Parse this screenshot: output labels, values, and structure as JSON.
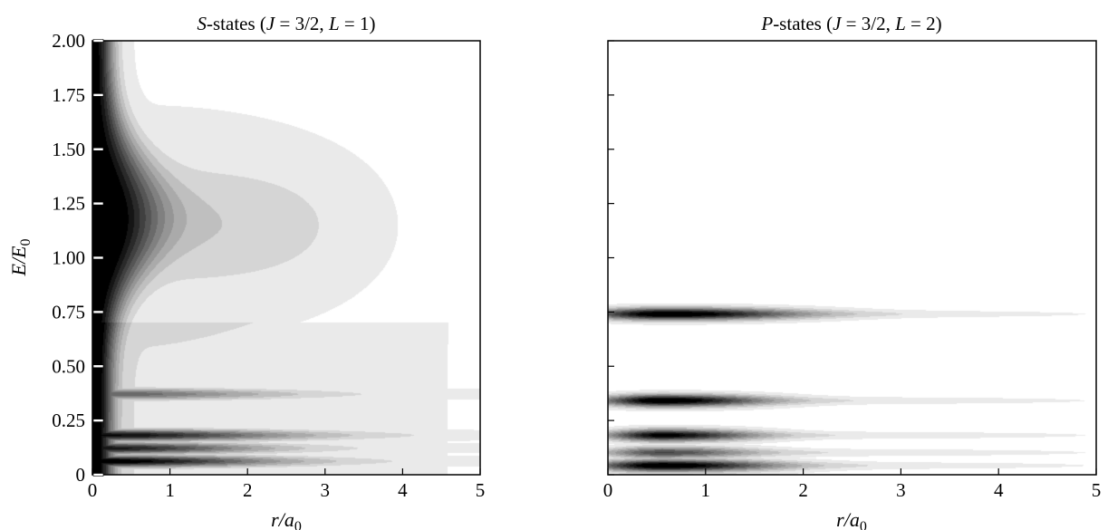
{
  "chart_data": [
    {
      "type": "heatmap",
      "title_parts": [
        {
          "t": "S",
          "i": true
        },
        {
          "t": "-states (",
          "i": false
        },
        {
          "t": "J",
          "i": true
        },
        {
          "t": " = 3/2, ",
          "i": false
        },
        {
          "t": "L",
          "i": true
        },
        {
          "t": " = 1)",
          "i": false
        }
      ],
      "xlabel": "r/a0",
      "ylabel": "E/E0",
      "xlim": [
        0,
        5
      ],
      "ylim": [
        0,
        2
      ],
      "x_ticks": [
        "0",
        "1",
        "2",
        "3",
        "4",
        "5"
      ],
      "y_ticks": [
        "0",
        "0.25",
        "0.50",
        "0.75",
        "1.00",
        "1.25",
        "1.50",
        "1.75",
        "2.00"
      ],
      "colormap": "grayscale, white = low density, black = high density",
      "features": [
        {
          "kind": "wall",
          "E_center": 1.2,
          "r_halfwidth": 0.45,
          "peak": 1.0
        },
        {
          "kind": "band",
          "E": 0.06,
          "r_extent": 2.2,
          "peak": 1.0
        },
        {
          "kind": "band",
          "E": 0.12,
          "r_extent": 2.0,
          "peak": 0.85
        },
        {
          "kind": "band",
          "E": 0.18,
          "r_extent": 2.4,
          "peak": 0.9
        },
        {
          "kind": "band",
          "E": 0.37,
          "r_extent": 2.2,
          "peak": 0.55
        }
      ]
    },
    {
      "type": "heatmap",
      "title_parts": [
        {
          "t": "P",
          "i": true
        },
        {
          "t": "-states (",
          "i": false
        },
        {
          "t": "J",
          "i": true
        },
        {
          "t": " = 3/2, ",
          "i": false
        },
        {
          "t": "L",
          "i": true
        },
        {
          "t": " = 2)",
          "i": false
        }
      ],
      "xlabel": "r/a0",
      "xlim": [
        0,
        5
      ],
      "ylim": [
        0,
        2
      ],
      "x_ticks": [
        "0",
        "1",
        "2",
        "3",
        "4",
        "5"
      ],
      "colormap": "grayscale, white = low density, black = high density",
      "features": [
        {
          "kind": "band",
          "E": 0.04,
          "r_center": 0.55,
          "r_extent": 1.1,
          "peak": 1.0
        },
        {
          "kind": "band",
          "E": 0.1,
          "r_center": 0.55,
          "r_extent": 0.9,
          "peak": 0.6
        },
        {
          "kind": "band",
          "E": 0.18,
          "r_center": 0.55,
          "r_extent": 0.9,
          "peak": 0.9
        },
        {
          "kind": "band",
          "E": 0.34,
          "r_center": 0.55,
          "r_extent": 1.0,
          "peak": 1.0
        },
        {
          "kind": "band",
          "E": 0.74,
          "r_center": 0.6,
          "r_extent": 1.3,
          "peak": 1.0
        }
      ]
    }
  ]
}
